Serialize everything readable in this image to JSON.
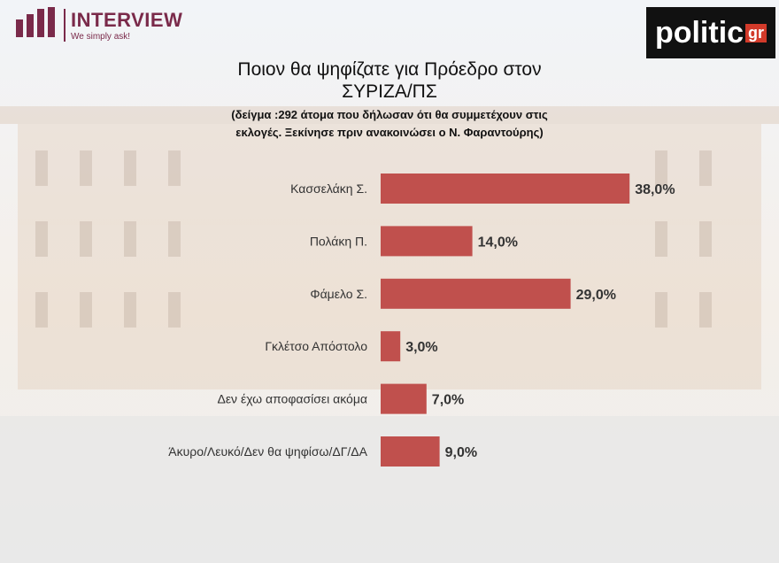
{
  "brand": {
    "name": "INTERVIEW",
    "tagline": "We simply ask!"
  },
  "source_logo": {
    "name": "politic",
    "suffix": "gr"
  },
  "chart_data": {
    "type": "bar",
    "orientation": "horizontal",
    "title": "Ποιον θα ψηφίζατε για Πρόεδρο στον ΣΥΡΙΖΑ/ΠΣ",
    "subtitle": "(δείγμα :292 άτομα που δήλωσαν ότι θα συμμετέχουν στις εκλογές. Ξεκίνησε πριν ανακοινώσει ο Ν. Φαραντούρης)",
    "categories": [
      "Κασσελάκη Σ.",
      "Πολάκη Π.",
      "Φάμελο Σ.",
      "Γκλέτσο Απόστολο",
      "Δεν έχω αποφασίσει ακόμα",
      "Άκυρο/Λευκό/Δεν θα ψηφίσω/ΔΓ/ΔΑ"
    ],
    "values": [
      38,
      14,
      29,
      3,
      7,
      9
    ],
    "value_labels": [
      "38,0%",
      "14,0%",
      "29,0%",
      "3,0%",
      "7,0%",
      "9,0%"
    ],
    "color": "#c0504d"
  }
}
